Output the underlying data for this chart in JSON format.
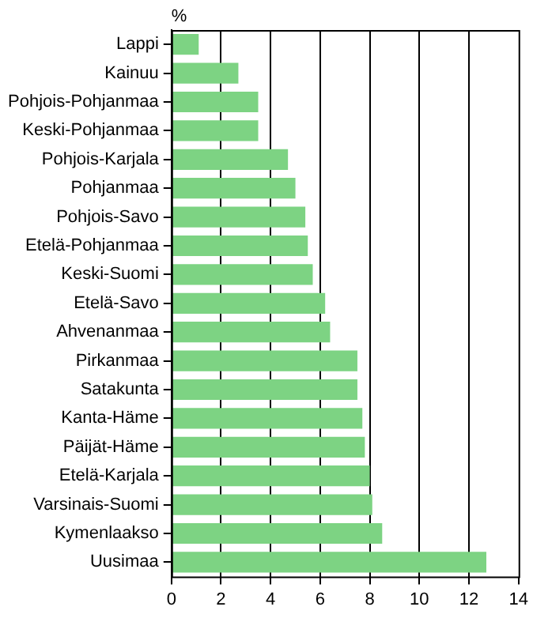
{
  "chart_data": {
    "type": "bar",
    "orientation": "horizontal",
    "xlabel": "%",
    "categories": [
      "Lappi",
      "Kainuu",
      "Pohjois-Pohjanmaa",
      "Keski-Pohjanmaa",
      "Pohjois-Karjala",
      "Pohjanmaa",
      "Pohjois-Savo",
      "Etelä-Pohjanmaa",
      "Keski-Suomi",
      "Etelä-Savo",
      "Ahvenanmaa",
      "Pirkanmaa",
      "Satakunta",
      "Kanta-Häme",
      "Päijät-Häme",
      "Etelä-Karjala",
      "Varsinais-Suomi",
      "Kymenlaakso",
      "Uusimaa"
    ],
    "values": [
      1.1,
      2.7,
      3.5,
      3.5,
      4.7,
      5.0,
      5.4,
      5.5,
      5.7,
      6.2,
      6.4,
      7.5,
      7.5,
      7.7,
      7.8,
      8.0,
      8.1,
      8.5,
      12.7
    ],
    "color": "#7dd383",
    "xlim": [
      0,
      14
    ],
    "xticks": [
      0,
      2,
      4,
      6,
      8,
      10,
      12,
      14
    ],
    "grid": "x",
    "legend": false
  }
}
